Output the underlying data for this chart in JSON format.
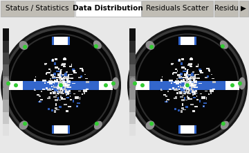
{
  "tab_labels": [
    "Status / Statistics",
    "Data Distribution",
    "Residuals Scatter",
    "Residu"
  ],
  "active_tab": 1,
  "tab_bar_bg": "#d4d0c8",
  "tab_bar_height": 0.115,
  "tab_active_bg": "#ffffff",
  "tab_inactive_bg": "#c0bdb5",
  "tab_text_color": "#000000",
  "tab_font_size": 7.5,
  "main_bg": "#e8e8e8",
  "grayscale_bar_colors": [
    "#111111",
    "#2a2a2a",
    "#444444",
    "#5e5e5e",
    "#787878",
    "#929292",
    "#aaaaaa",
    "#c8c8c8",
    "#e0e0e0"
  ],
  "blue_color": "#3366cc",
  "green_dot_color": "#33cc33",
  "white_color": "#ffffff",
  "gray_tab_color": "#909090",
  "black_circle_color": "#050505",
  "dark_ring_color": "#1c1c1c",
  "fig_width": 3.6,
  "fig_height": 2.21,
  "dpi": 100
}
